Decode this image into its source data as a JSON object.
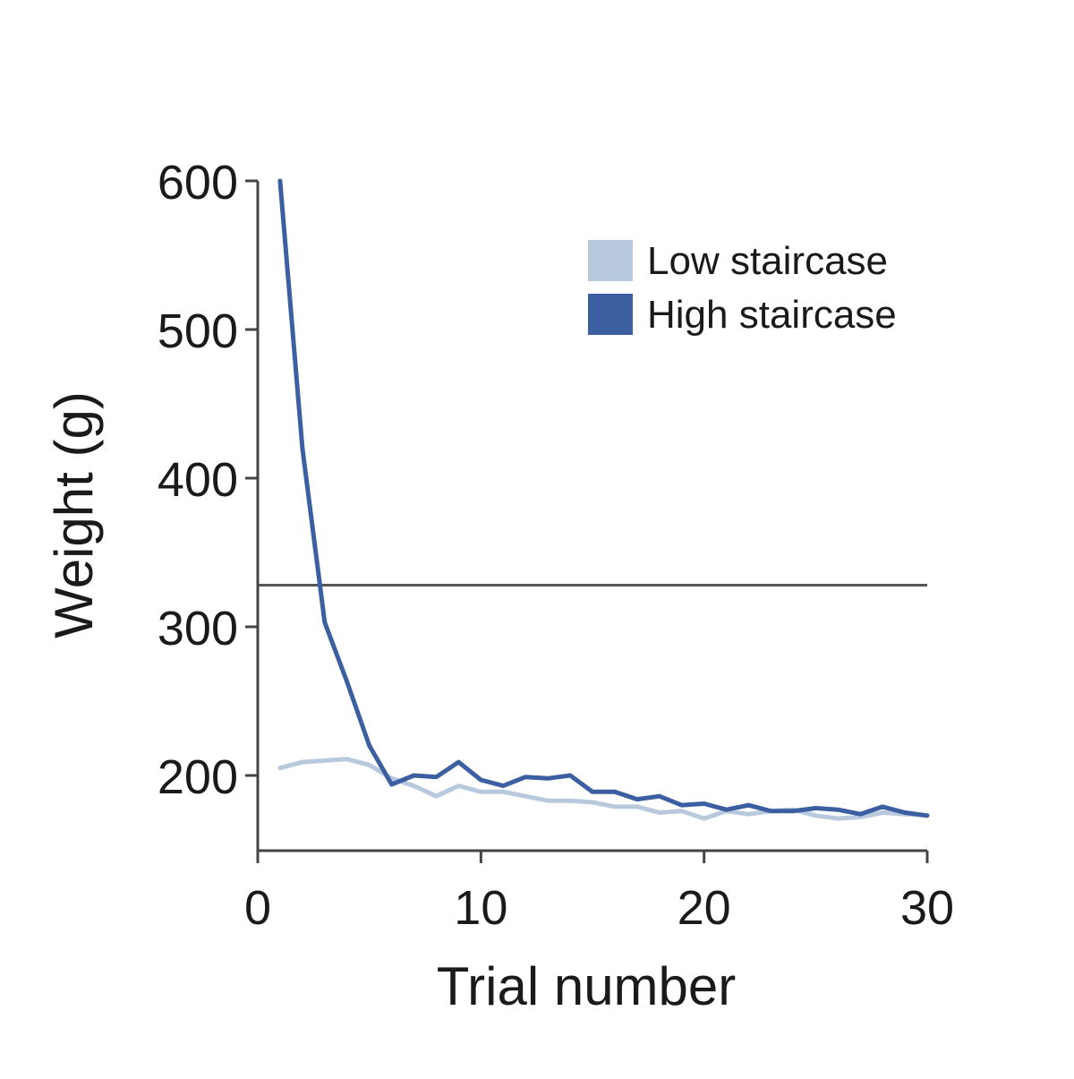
{
  "chart_data": {
    "type": "line",
    "title": "",
    "xlabel": "Trial number",
    "ylabel": "Weight (g)",
    "xlim": [
      0,
      30
    ],
    "ylim": [
      150,
      600
    ],
    "xticks": [
      0,
      10,
      20,
      30
    ],
    "yticks": [
      200,
      300,
      400,
      500,
      600
    ],
    "grid": false,
    "legend_position": "top-right",
    "reference_line": {
      "y": 328
    },
    "series": [
      {
        "name": "Low staircase",
        "color": "#b8c9de",
        "x": [
          1,
          2,
          3,
          4,
          5,
          6,
          7,
          8,
          9,
          10,
          11,
          12,
          13,
          14,
          15,
          16,
          17,
          18,
          19,
          20,
          21,
          22,
          23,
          24,
          25,
          26,
          27,
          28,
          29,
          30
        ],
        "values": [
          205,
          209,
          210,
          211,
          207,
          198,
          193,
          186,
          193,
          189,
          189,
          186,
          183,
          183,
          182,
          179,
          179,
          175,
          176,
          171,
          176,
          174,
          176,
          177,
          173,
          171,
          172,
          175,
          174,
          173
        ]
      },
      {
        "name": "High staircase",
        "color": "#3b5fa0",
        "x": [
          1,
          2,
          3,
          4,
          5,
          6,
          7,
          8,
          9,
          10,
          11,
          12,
          13,
          14,
          15,
          16,
          17,
          18,
          19,
          20,
          21,
          22,
          23,
          24,
          25,
          26,
          27,
          28,
          29,
          30
        ],
        "values": [
          600,
          420,
          303,
          263,
          220,
          194,
          200,
          199,
          209,
          197,
          193,
          199,
          198,
          200,
          189,
          189,
          184,
          186,
          180,
          181,
          177,
          180,
          176,
          176,
          178,
          177,
          174,
          179,
          175,
          173
        ]
      }
    ]
  }
}
